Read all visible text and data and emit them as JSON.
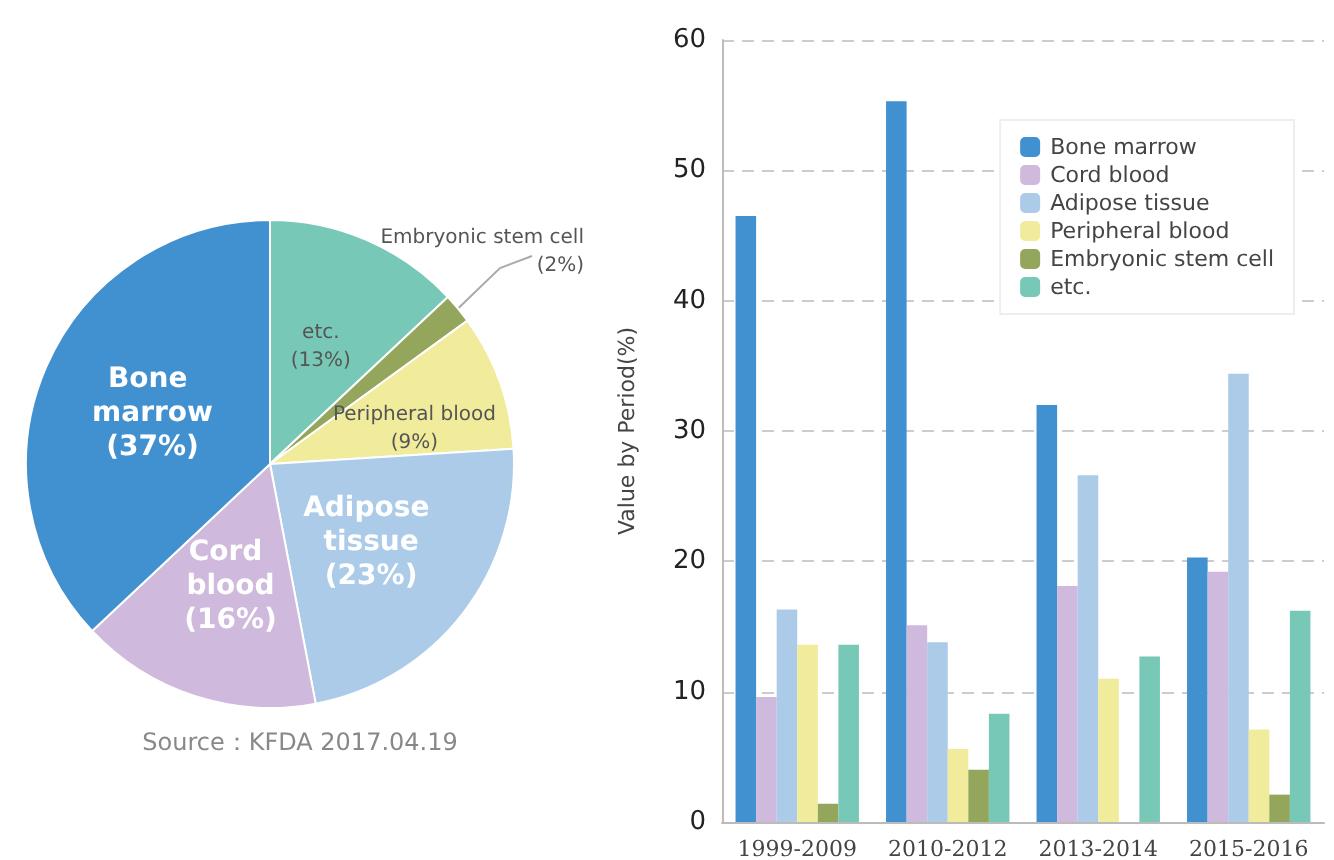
{
  "chart_data": [
    {
      "type": "pie",
      "categories": [
        "etc.",
        "Embryonic stem cell",
        "Peripheral blood",
        "Adipose tissue",
        "Cord blood",
        "Bone marrow"
      ],
      "values": [
        13,
        2,
        9,
        23,
        16,
        37
      ],
      "value_labels": [
        "(13%)",
        "(2%)",
        "(9%)",
        "(23%)",
        "(16%)",
        "(37%)"
      ],
      "colors": [
        "#78c8b8",
        "#94a65c",
        "#f1eb9c",
        "#abcbe9",
        "#cfb9dc",
        "#4190d0"
      ],
      "annotations": [
        "Source：KFDA 2017.04.19"
      ]
    },
    {
      "type": "bar",
      "ylabel": "Value by Period(%)",
      "categories": [
        "1999-2009",
        "2010-2012",
        "2013-2014",
        "2015-2016"
      ],
      "series": [
        {
          "name": "Bone marrow",
          "color": "#4190d0",
          "values": [
            46.5,
            55.3,
            32.0,
            20.3
          ]
        },
        {
          "name": "Cord blood",
          "color": "#cfb9dc",
          "values": [
            9.6,
            15.1,
            18.1,
            19.2
          ]
        },
        {
          "name": "Adipose tissue",
          "color": "#abcbe9",
          "values": [
            16.3,
            13.8,
            26.6,
            34.4
          ]
        },
        {
          "name": "Peripheral blood",
          "color": "#f1eb9c",
          "values": [
            13.6,
            5.6,
            11.0,
            7.1
          ]
        },
        {
          "name": "Embryonic stem cell",
          "color": "#94a65c",
          "values": [
            1.4,
            4.0,
            null,
            2.1
          ]
        },
        {
          "name": "etc.",
          "color": "#78c8b8",
          "values": [
            13.6,
            8.3,
            12.7,
            16.2
          ]
        }
      ],
      "ylim": [
        0,
        60
      ],
      "yticks": [
        0,
        10,
        20,
        30,
        40,
        50,
        60
      ],
      "grid": "y",
      "legend": "top right"
    }
  ]
}
